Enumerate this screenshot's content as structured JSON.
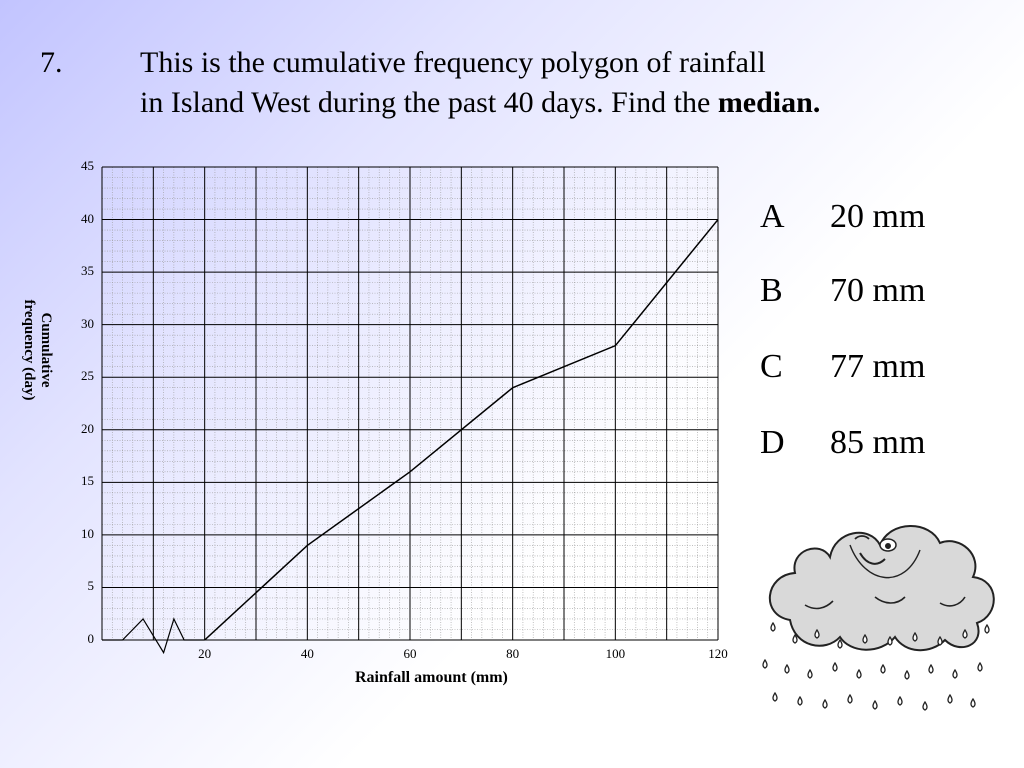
{
  "question": {
    "number": "7.",
    "line1": "This is the cumulative frequency polygon of rainfall",
    "line2_plain": "in Island West during the past 40 days.  Find the ",
    "line2_bold": "median."
  },
  "chart_data": {
    "type": "line",
    "title": "",
    "xlabel": "Rainfall amount (mm)",
    "ylabel_line1": "Cumulative",
    "ylabel_line2": "frequency (day)",
    "xlim": [
      0,
      120
    ],
    "ylim": [
      0,
      45
    ],
    "x_axis_break": true,
    "grid": true,
    "xticks": [
      "20",
      "40",
      "60",
      "80",
      "100",
      "120"
    ],
    "yticks": [
      "0",
      "5",
      "10",
      "15",
      "20",
      "25",
      "30",
      "35",
      "40",
      "45"
    ],
    "series": [
      {
        "x": [
          20,
          40,
          60,
          80,
          100,
          120
        ],
        "y": [
          0,
          9,
          16,
          24,
          28,
          40
        ]
      }
    ]
  },
  "options": [
    {
      "letter": "A",
      "value": "20 mm"
    },
    {
      "letter": "B",
      "value": "70 mm"
    },
    {
      "letter": "C",
      "value": "77 mm"
    },
    {
      "letter": "D",
      "value": "85 mm"
    }
  ],
  "decoration": {
    "icon": "rain-cloud-icon"
  }
}
